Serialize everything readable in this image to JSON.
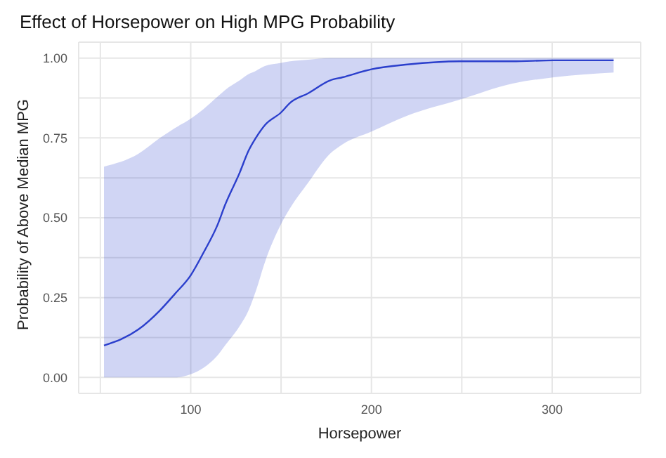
{
  "chart_data": {
    "type": "line",
    "title": "Effect of Horsepower on High MPG Probability",
    "xlabel": "Horsepower",
    "ylabel": "Probability of Above Median MPG",
    "x": [
      52,
      71,
      83,
      91,
      100,
      107,
      115,
      119,
      127,
      132,
      136,
      141,
      150,
      155,
      165,
      177,
      184,
      200,
      220,
      249,
      278,
      301,
      334
    ],
    "series": [
      {
        "color": "#2b3fcc",
        "values": [
          0.1,
          0.15,
          0.21,
          0.26,
          0.32,
          0.39,
          0.48,
          0.54,
          0.64,
          0.71,
          0.75,
          0.79,
          0.83,
          0.86,
          0.89,
          0.93,
          0.94,
          0.965,
          0.98,
          0.99,
          0.99,
          0.993,
          0.993
        ],
        "lower": [
          0,
          0,
          0,
          0,
          0.01,
          0.03,
          0.07,
          0.1,
          0.16,
          0.21,
          0.27,
          0.36,
          0.48,
          0.53,
          0.61,
          0.7,
          0.73,
          0.77,
          0.82,
          0.87,
          0.92,
          0.94,
          0.955
        ],
        "upper": [
          0.66,
          0.7,
          0.75,
          0.78,
          0.81,
          0.84,
          0.88,
          0.9,
          0.93,
          0.95,
          0.96,
          0.975,
          0.985,
          0.99,
          0.995,
          1.0,
          1.0,
          1.0,
          1.0,
          1.0,
          1.0,
          1.0,
          1.0
        ]
      }
    ],
    "xlim": [
      38,
      349
    ],
    "xticks": [
      {
        "value": 50,
        "label": null
      },
      100,
      {
        "value": 150,
        "label": null
      },
      200,
      {
        "value": 250,
        "label": null
      },
      300
    ],
    "ylim": [
      -0.05,
      1.05
    ],
    "yticks": [
      {
        "value": 0,
        "label": "0.00"
      },
      {
        "value": 0.125,
        "label": null
      },
      {
        "value": 0.25,
        "label": "0.25"
      },
      {
        "value": 0.375,
        "label": null
      },
      {
        "value": 0.5,
        "label": "0.50"
      },
      {
        "value": 0.625,
        "label": null
      },
      {
        "value": 0.75,
        "label": "0.75"
      },
      {
        "value": 0.875,
        "label": null
      },
      {
        "value": 1,
        "label": "1.00"
      }
    ],
    "grid": true,
    "marker": "none",
    "line_style": "solid"
  }
}
